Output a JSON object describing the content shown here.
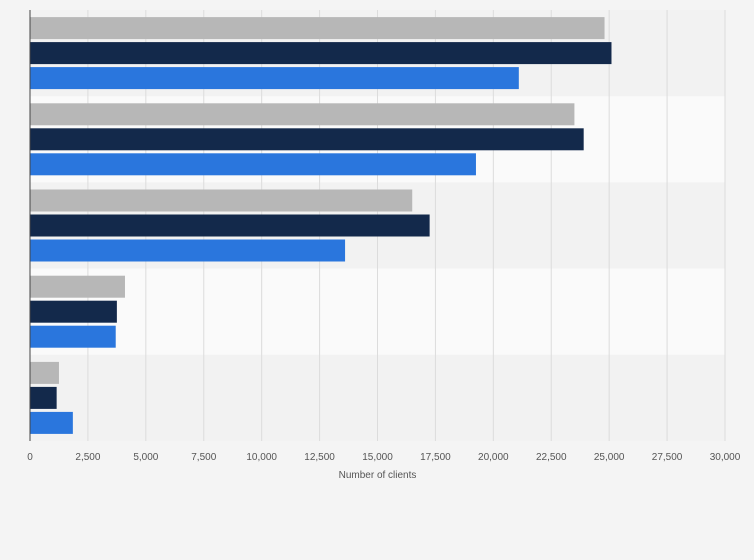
{
  "chart_data": {
    "type": "bar",
    "orientation": "horizontal",
    "title": "",
    "xlabel": "Number of clients",
    "ylabel": "",
    "xlim": [
      0,
      30000
    ],
    "x_ticks": [
      0,
      2500,
      5000,
      7500,
      10000,
      12500,
      15000,
      17500,
      20000,
      22500,
      25000,
      27500,
      30000
    ],
    "x_tick_labels": [
      "0",
      "2,500",
      "5,000",
      "7,500",
      "10,000",
      "12,500",
      "15,000",
      "17,500",
      "20,000",
      "22,500",
      "25,000",
      "27,500",
      "30,000"
    ],
    "categories": [
      "",
      "",
      "",
      "",
      ""
    ],
    "series": [
      {
        "color": "#b7b7b7",
        "values": [
          24800,
          23500,
          16500,
          4100,
          1250
        ]
      },
      {
        "color": "#13294b",
        "values": [
          25100,
          23900,
          17250,
          3750,
          1150
        ]
      },
      {
        "color": "#2a76dd",
        "values": [
          21100,
          19250,
          13600,
          3700,
          1850
        ]
      }
    ],
    "grid": true,
    "legend": "none",
    "band_colors": [
      "#f2f2f2",
      "#fafafa"
    ]
  }
}
